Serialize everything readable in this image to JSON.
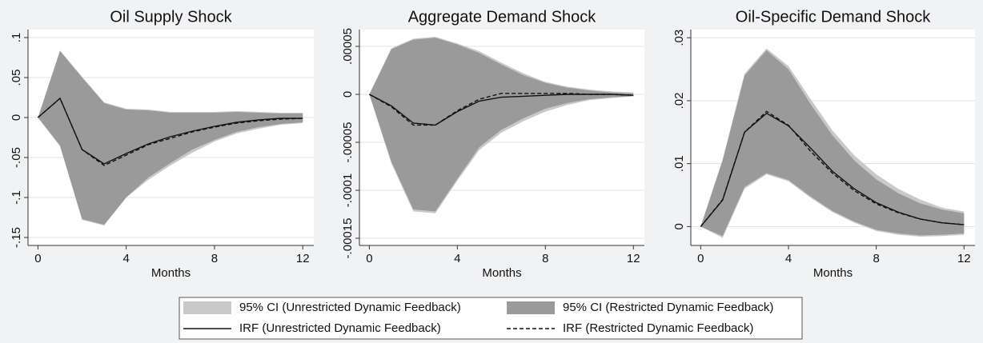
{
  "chart_data": [
    {
      "type": "band-line",
      "title": "Oil Supply Shock",
      "xlabel": "Months",
      "x": [
        0,
        1,
        2,
        3,
        4,
        5,
        6,
        7,
        8,
        9,
        10,
        11,
        12
      ],
      "xlim": [
        -0.45,
        12.5
      ],
      "xticks": [
        0,
        4,
        8,
        12
      ],
      "ylim": [
        -0.16,
        0.11
      ],
      "yticks": [
        {
          "value": -0.15,
          "label": "-.15"
        },
        {
          "value": -0.1,
          "label": "-.1"
        },
        {
          "value": -0.05,
          "label": "-.05"
        },
        0,
        {
          "value": 0.05,
          "label": ".05"
        },
        {
          "value": 0.1,
          "label": ".1"
        }
      ],
      "grid": true,
      "series": [
        {
          "lower": [
            0,
            -0.036,
            -0.128,
            -0.135,
            -0.1,
            -0.078,
            -0.06,
            -0.044,
            -0.03,
            -0.02,
            -0.014,
            -0.009,
            -0.007
          ],
          "upper": [
            0,
            0.084,
            0.051,
            0.019,
            0.011,
            0.01,
            0.007,
            0.007,
            0.007,
            0.008,
            0.007,
            0.006,
            0.006
          ]
        },
        {
          "lower": [
            0,
            -0.035,
            -0.127,
            -0.134,
            -0.1,
            -0.075,
            -0.057,
            -0.04,
            -0.028,
            -0.018,
            -0.012,
            -0.008,
            -0.006
          ],
          "upper": [
            0,
            0.083,
            0.05,
            0.018,
            0.01,
            0.009,
            0.006,
            0.006,
            0.006,
            0.007,
            0.006,
            0.005,
            0.005
          ]
        },
        {
          "values": [
            0,
            0.024,
            -0.04,
            -0.058,
            -0.045,
            -0.033,
            -0.024,
            -0.017,
            -0.011,
            -0.006,
            -0.003,
            -0.001,
            -0.001
          ]
        },
        {
          "values": [
            0,
            0.024,
            -0.04,
            -0.06,
            -0.047,
            -0.034,
            -0.026,
            -0.018,
            -0.012,
            -0.007,
            -0.004,
            -0.002,
            -0.001
          ]
        }
      ]
    },
    {
      "type": "band-line",
      "title": "Aggregate Demand Shock",
      "xlabel": "Months",
      "x": [
        0,
        1,
        2,
        3,
        4,
        5,
        6,
        7,
        8,
        9,
        10,
        11,
        12
      ],
      "xlim": [
        -0.45,
        12.5
      ],
      "xticks": [
        0,
        4,
        8,
        12
      ],
      "ylim": [
        -0.0001575,
        6.75e-05
      ],
      "yticks": [
        {
          "value": -0.00015,
          "label": "-.00015"
        },
        {
          "value": -0.0001,
          "label": "-.0001"
        },
        {
          "value": -5e-05,
          "label": "-.00005"
        },
        0,
        {
          "value": 5e-05,
          "label": ".00005"
        }
      ],
      "grid": true,
      "series": [
        {
          "lower": [
            0,
            -7.2e-05,
            -0.000122,
            -0.000124,
            -9e-05,
            -5.8e-05,
            -4e-05,
            -2.8e-05,
            -1.8e-05,
            -1.1e-05,
            -6e-06,
            -4e-06,
            -2e-06
          ],
          "upper": [
            0,
            4.8e-05,
            5.8e-05,
            6e-05,
            5.3e-05,
            4.5e-05,
            3.3e-05,
            2.2e-05,
            1.3e-05,
            8e-06,
            5e-06,
            3e-06,
            2e-06
          ]
        },
        {
          "lower": [
            0,
            -7e-05,
            -0.00012,
            -0.000122,
            -8.8e-05,
            -5.5e-05,
            -3.7e-05,
            -2.5e-05,
            -1.5e-05,
            -9e-06,
            -5e-06,
            -3e-06,
            -2e-06
          ],
          "upper": [
            0,
            4.7e-05,
            5.7e-05,
            5.9e-05,
            5.2e-05,
            4.3e-05,
            3.1e-05,
            2e-05,
            1.2e-05,
            7e-06,
            4e-06,
            2e-06,
            1e-06
          ]
        },
        {
          "values": [
            0,
            -1.2e-05,
            -3e-05,
            -3.2e-05,
            -1.8e-05,
            -7e-06,
            -3e-06,
            -2e-06,
            -1e-06,
            0,
            0,
            0,
            -1e-06
          ]
        },
        {
          "values": [
            0,
            -1.3e-05,
            -3.2e-05,
            -3.2e-05,
            -1.7e-05,
            -5e-06,
            1e-06,
            1e-06,
            1e-06,
            1e-06,
            0,
            0,
            -1e-06
          ]
        }
      ]
    },
    {
      "type": "band-line",
      "title": "Oil-Specific Demand Shock",
      "xlabel": "Months",
      "x": [
        0,
        1,
        2,
        3,
        4,
        5,
        6,
        7,
        8,
        9,
        10,
        11,
        12
      ],
      "xlim": [
        -0.45,
        12.5
      ],
      "xticks": [
        0,
        4,
        8,
        12
      ],
      "ylim": [
        -0.003,
        0.0313
      ],
      "yticks": [
        0,
        {
          "value": 0.01,
          "label": ".01"
        },
        {
          "value": 0.02,
          "label": ".02"
        },
        {
          "value": 0.03,
          "label": ".03"
        }
      ],
      "grid": true,
      "series": [
        {
          "lower": [
            0,
            -0.0018,
            0.006,
            0.0083,
            0.0072,
            0.0046,
            0.0023,
            0.0006,
            -0.0007,
            -0.0013,
            -0.0016,
            -0.0015,
            -0.0013
          ],
          "upper": [
            0,
            0.0107,
            0.0243,
            0.0283,
            0.0255,
            0.0203,
            0.0153,
            0.0113,
            0.0083,
            0.006,
            0.0043,
            0.003,
            0.0024
          ]
        },
        {
          "lower": [
            0,
            -0.0015,
            0.0063,
            0.0085,
            0.0074,
            0.0048,
            0.0025,
            0.0008,
            -0.0005,
            -0.0011,
            -0.0014,
            -0.0013,
            -0.0011
          ],
          "upper": [
            0,
            0.0105,
            0.024,
            0.028,
            0.025,
            0.0195,
            0.0145,
            0.0105,
            0.0075,
            0.0053,
            0.0037,
            0.0027,
            0.0021
          ]
        },
        {
          "values": [
            0,
            0.0042,
            0.015,
            0.018,
            0.016,
            0.0125,
            0.0088,
            0.006,
            0.0038,
            0.0023,
            0.0012,
            0.0006,
            0.0003
          ]
        },
        {
          "values": [
            0,
            0.0043,
            0.015,
            0.0183,
            0.0161,
            0.012,
            0.0085,
            0.0057,
            0.0036,
            0.0022,
            0.0012,
            0.0006,
            0.0003
          ]
        }
      ]
    }
  ],
  "legend": [
    {
      "name": "95% CI (Unrestricted Dynamic Feedback)",
      "color": "#c9c9c9",
      "kind": "band"
    },
    {
      "name": "95% CI (Restricted Dynamic Feedback)",
      "color": "#9a9a9a",
      "kind": "band"
    },
    {
      "name": "IRF (Unrestricted Dynamic Feedback)",
      "color": "#111111",
      "kind": "line",
      "dashed": false
    },
    {
      "name": "IRF (Restricted Dynamic Feedback)",
      "color": "#111111",
      "kind": "line",
      "dashed": true
    }
  ]
}
